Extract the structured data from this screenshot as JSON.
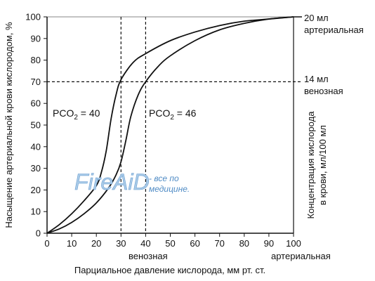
{
  "chart_data": {
    "type": "line",
    "xlabel": "Парциальное давление кислорода, мм рт. ст.",
    "ylabel": "Насыщение артериальной крови кислородом, %",
    "ylabel_right": "Концентрация кислорода в крови, мл/100 мл",
    "ylabel_right_lines": [
      "Концентрация кислорода",
      "в крови, мл/100 мл"
    ],
    "xlim": [
      0,
      100
    ],
    "ylim": [
      0,
      100
    ],
    "x_ticks": [
      "0",
      "10",
      "20",
      "30",
      "40",
      "50",
      "60",
      "70",
      "80",
      "90",
      "100"
    ],
    "y_ticks": [
      "0",
      "10",
      "20",
      "30",
      "40",
      "50",
      "60",
      "70",
      "80",
      "90",
      "100"
    ],
    "grid": false,
    "series": [
      {
        "name": "PCO2 = 40",
        "label_main": "PCO",
        "label_sub": "2",
        "label_tail": " = 40",
        "x": [
          0,
          5,
          10,
          15,
          20,
          22,
          24,
          26,
          28,
          30,
          35,
          40,
          50,
          60,
          70,
          80,
          90,
          100
        ],
        "y": [
          0,
          4,
          9,
          15,
          22,
          28,
          38,
          53,
          64,
          71,
          79,
          83,
          89,
          93,
          96,
          98,
          99,
          100
        ]
      },
      {
        "name": "PCO2 = 46",
        "label_main": "PCO",
        "label_sub": "2",
        "label_tail": " = 46",
        "x": [
          0,
          5,
          10,
          15,
          20,
          25,
          28,
          30,
          32,
          34,
          37,
          40,
          45,
          50,
          60,
          70,
          80,
          90,
          100
        ],
        "y": [
          0,
          2,
          5,
          9,
          14,
          21,
          27,
          33,
          43,
          54,
          64,
          70,
          77,
          82,
          89,
          94,
          97,
          99,
          100
        ]
      }
    ],
    "reference_lines": {
      "vertical_x": [
        30,
        40
      ],
      "horizontal_y": 70,
      "style": "dashed"
    },
    "annotations": {
      "right_top": [
        "20 мл",
        "артериальная"
      ],
      "right_mid": [
        "14 мл",
        "венозная"
      ],
      "bottom_venous": "венозная",
      "bottom_arterial": "артериальная"
    }
  },
  "watermark": {
    "text": "FireAiD",
    "tagline_line1": "- все по",
    "tagline_line2": "медицине."
  },
  "colors": {
    "line": "#111111",
    "watermark_fill": "#a9cbe8",
    "watermark_text": "#4f8bc5"
  }
}
